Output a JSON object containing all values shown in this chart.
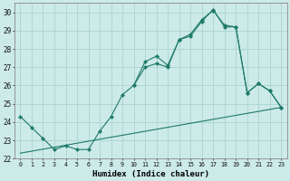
{
  "xlabel": "Humidex (Indice chaleur)",
  "background_color": "#cceae8",
  "grid_color": "#aad4d0",
  "line_color": "#1e7a6a",
  "xlim": [
    -0.5,
    23.5
  ],
  "ylim": [
    22,
    30.5
  ],
  "yticks": [
    22,
    23,
    24,
    25,
    26,
    27,
    28,
    29,
    30
  ],
  "xticks": [
    0,
    1,
    2,
    3,
    4,
    5,
    6,
    7,
    8,
    9,
    10,
    11,
    12,
    13,
    14,
    15,
    16,
    17,
    18,
    19,
    20,
    21,
    22,
    23
  ],
  "line1_x": [
    0,
    1,
    2,
    3,
    4,
    5,
    6,
    7,
    8,
    9,
    10,
    11,
    12,
    13,
    14,
    15,
    16,
    17,
    18,
    19,
    20,
    21,
    22,
    23
  ],
  "line1_y": [
    24.3,
    23.7,
    23.1,
    22.5,
    22.7,
    22.5,
    22.5,
    23.5,
    24.3,
    25.5,
    26.0,
    27.0,
    27.2,
    27.0,
    28.5,
    28.7,
    29.5,
    30.15,
    29.2,
    29.2,
    25.6,
    26.1,
    25.7,
    24.8
  ],
  "line2_x": [
    10,
    11,
    12,
    13,
    14,
    15,
    16,
    17,
    18,
    19,
    20,
    21,
    22,
    23
  ],
  "line2_y": [
    26.0,
    27.3,
    27.6,
    27.1,
    28.5,
    28.8,
    29.6,
    30.1,
    29.3,
    29.2,
    25.6,
    26.1,
    25.7,
    24.8
  ],
  "line3_x": [
    0,
    23
  ],
  "line3_y": [
    22.3,
    24.8
  ]
}
